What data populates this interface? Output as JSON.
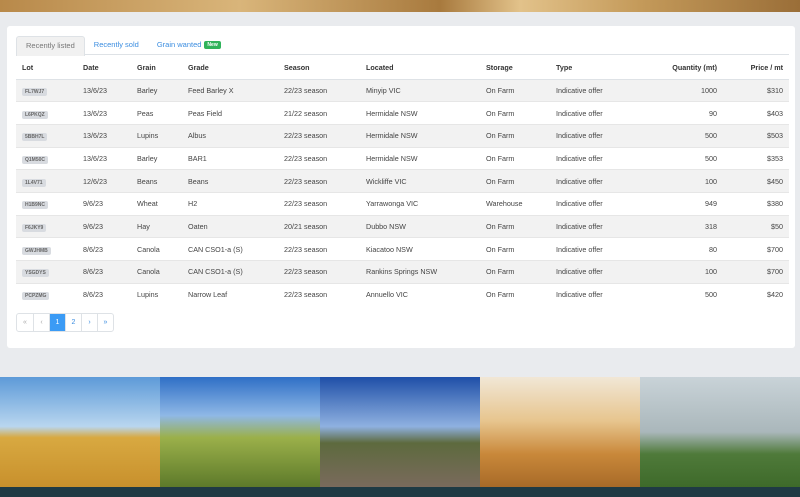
{
  "tabs": [
    {
      "label": "Recently listed"
    },
    {
      "label": "Recently sold"
    },
    {
      "label": "Grain wanted",
      "badge": "New"
    }
  ],
  "columns": {
    "lot": "Lot",
    "date": "Date",
    "grain": "Grain",
    "grade": "Grade",
    "season": "Season",
    "located": "Located",
    "storage": "Storage",
    "type": "Type",
    "quantity": "Quantity (mt)",
    "price": "Price / mt"
  },
  "rows": [
    {
      "lot": "FL7WJ7",
      "date": "13/6/23",
      "grain": "Barley",
      "grade": "Feed Barley X",
      "season": "22/23 season",
      "located": "Minyip VIC",
      "storage": "On Farm",
      "type": "Indicative offer",
      "quantity": "1000",
      "price": "$310"
    },
    {
      "lot": "L6PKQZ",
      "date": "13/6/23",
      "grain": "Peas",
      "grade": "Peas Field",
      "season": "21/22 season",
      "located": "Hermidale NSW",
      "storage": "On Farm",
      "type": "Indicative offer",
      "quantity": "90",
      "price": "$403"
    },
    {
      "lot": "5BBH7L",
      "date": "13/6/23",
      "grain": "Lupins",
      "grade": "Albus",
      "season": "22/23 season",
      "located": "Hermidale NSW",
      "storage": "On Farm",
      "type": "Indicative offer",
      "quantity": "500",
      "price": "$503"
    },
    {
      "lot": "Q1M50C",
      "date": "13/6/23",
      "grain": "Barley",
      "grade": "BAR1",
      "season": "22/23 season",
      "located": "Hermidale NSW",
      "storage": "On Farm",
      "type": "Indicative offer",
      "quantity": "500",
      "price": "$353"
    },
    {
      "lot": "1L4V71",
      "date": "12/6/23",
      "grain": "Beans",
      "grade": "Beans",
      "season": "22/23 season",
      "located": "Wickliffe VIC",
      "storage": "On Farm",
      "type": "Indicative offer",
      "quantity": "100",
      "price": "$450"
    },
    {
      "lot": "H1B9NC",
      "date": "9/6/23",
      "grain": "Wheat",
      "grade": "H2",
      "season": "22/23 season",
      "located": "Yarrawonga VIC",
      "storage": "Warehouse",
      "type": "Indicative offer",
      "quantity": "949",
      "price": "$380"
    },
    {
      "lot": "F6JKY9",
      "date": "9/6/23",
      "grain": "Hay",
      "grade": "Oaten",
      "season": "20/21 season",
      "located": "Dubbo NSW",
      "storage": "On Farm",
      "type": "Indicative offer",
      "quantity": "318",
      "price": "$50"
    },
    {
      "lot": "GWJHMB",
      "date": "8/6/23",
      "grain": "Canola",
      "grade": "CAN CSO1-a (S)",
      "season": "22/23 season",
      "located": "Kiacatoo NSW",
      "storage": "On Farm",
      "type": "Indicative offer",
      "quantity": "80",
      "price": "$700"
    },
    {
      "lot": "YSGDYS",
      "date": "8/6/23",
      "grain": "Canola",
      "grade": "CAN CSO1-a (S)",
      "season": "22/23 season",
      "located": "Rankins Springs NSW",
      "storage": "On Farm",
      "type": "Indicative offer",
      "quantity": "100",
      "price": "$700"
    },
    {
      "lot": "PCPZMG",
      "date": "8/6/23",
      "grain": "Lupins",
      "grade": "Narrow Leaf",
      "season": "22/23 season",
      "located": "Annuello VIC",
      "storage": "On Farm",
      "type": "Indicative offer",
      "quantity": "500",
      "price": "$420"
    }
  ],
  "pagination": {
    "first": "«",
    "prev": "‹",
    "pages": [
      "1",
      "2"
    ],
    "current": "1",
    "next": "›",
    "last": "»"
  },
  "colors": {
    "accent": "#3b9bf5",
    "badge": "#2fb35a",
    "footer": "#1f3a44"
  }
}
